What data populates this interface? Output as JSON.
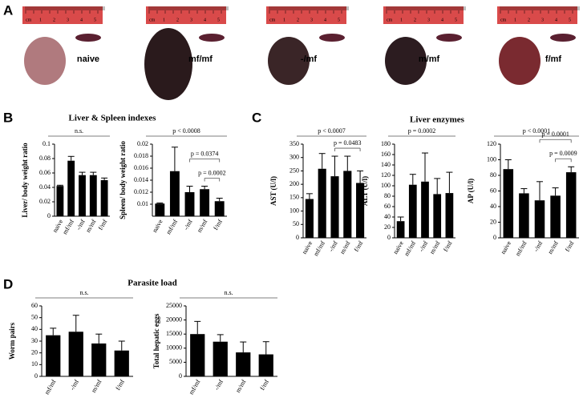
{
  "sections": [
    {
      "letter": "A"
    },
    {
      "letter": "B",
      "title": "Liver & Spleen indexes"
    },
    {
      "letter": "C",
      "title": "Liver enzymes"
    },
    {
      "letter": "D",
      "title": "Parasite load"
    }
  ],
  "photos": {
    "ruler_labels": [
      "cm",
      "1",
      "2",
      "3",
      "4",
      "5"
    ],
    "labels": [
      "naive",
      "mf/mf",
      "-/mf",
      "m/mf",
      "f/mf"
    ]
  },
  "chart_data": [
    {
      "type": "bar",
      "ylabel": "Liver/ body weight ratio",
      "color": "#000000",
      "categories": [
        "naive",
        "mf/mf",
        "-/mf",
        "m/mf",
        "f/mf"
      ],
      "values": [
        0.042,
        0.077,
        0.057,
        0.057,
        0.05
      ],
      "errors": [
        0.001,
        0.006,
        0.004,
        0.004,
        0.003
      ],
      "ylim": [
        0,
        0.1
      ],
      "yticks": [
        0,
        0.02,
        0.04,
        0.06,
        0.08,
        0.1
      ],
      "annotations": [
        {
          "label": "n.s.",
          "between": [
            "naive",
            "f/mf"
          ]
        }
      ]
    },
    {
      "type": "bar",
      "ylabel": "Spleen/ body weight ratio",
      "color": "#000000",
      "categories": [
        "naive",
        "mf/mf",
        "-/mf",
        "m/mf",
        "f/mf"
      ],
      "values": [
        0.0101,
        0.0155,
        0.012,
        0.0125,
        0.0105
      ],
      "errors": [
        0.0001,
        0.004,
        0.001,
        0.0005,
        0.0005
      ],
      "ylim": [
        0.008,
        0.02
      ],
      "yticks": [
        0.01,
        0.012,
        0.014,
        0.016,
        0.018,
        0.02
      ],
      "annotations": [
        {
          "label": "p < 0.0008",
          "between": [
            "naive",
            "f/mf"
          ]
        },
        {
          "label": "p = 0.0374",
          "between": [
            "-/mf",
            "f/mf"
          ]
        },
        {
          "label": "p = 0.0002",
          "between": [
            "m/mf",
            "f/mf"
          ]
        }
      ]
    },
    {
      "type": "bar",
      "ylabel": "AST (U/l)",
      "color": "#000000",
      "categories": [
        "naive",
        "mf/mf",
        "-/mf",
        "m/mf",
        "f/mf"
      ],
      "values": [
        145,
        258,
        230,
        250,
        205
      ],
      "errors": [
        20,
        57,
        75,
        55,
        45
      ],
      "ylim": [
        0,
        350
      ],
      "yticks": [
        0,
        50,
        100,
        150,
        200,
        250,
        300,
        350
      ],
      "annotations": [
        {
          "label": "p < 0.0007",
          "between": [
            "naive",
            "f/mf"
          ]
        },
        {
          "label": "p = 0.0483",
          "between": [
            "-/mf",
            "f/mf"
          ]
        }
      ]
    },
    {
      "type": "bar",
      "ylabel": "ALT (U/l)",
      "color": "#000000",
      "categories": [
        "naive",
        "mf/mf",
        "-/mf",
        "m/mf",
        "f/mf"
      ],
      "values": [
        32,
        102,
        108,
        84,
        86
      ],
      "errors": [
        8,
        20,
        55,
        30,
        40
      ],
      "ylim": [
        0,
        180
      ],
      "yticks": [
        0,
        20,
        40,
        60,
        80,
        100,
        120,
        140,
        160,
        180
      ],
      "annotations": [
        {
          "label": "p = 0.0002",
          "between": [
            "naive",
            "f/mf"
          ]
        }
      ]
    },
    {
      "type": "bar",
      "ylabel": "AP (U/l)",
      "color": "#000000",
      "categories": [
        "naive",
        "mf/mf",
        "-/mf",
        "m/mf",
        "f/mf"
      ],
      "values": [
        88,
        57,
        48,
        54,
        84
      ],
      "errors": [
        12,
        6,
        24,
        10,
        7
      ],
      "ylim": [
        0,
        120
      ],
      "yticks": [
        0,
        20,
        40,
        60,
        80,
        100,
        120
      ],
      "annotations": [
        {
          "label": "p < 0.0001",
          "between": [
            "naive",
            "f/mf"
          ]
        },
        {
          "label": "p = 0.0001",
          "between": [
            "-/mf",
            "f/mf"
          ]
        },
        {
          "label": "p = 0.0009",
          "between": [
            "m/mf",
            "f/mf"
          ]
        }
      ]
    },
    {
      "type": "bar",
      "ylabel": "Worm pairs",
      "color": "#000000",
      "categories": [
        "mf/mf",
        "-/mf",
        "m/mf",
        "f/mf"
      ],
      "values": [
        35,
        38,
        28,
        22
      ],
      "errors": [
        6,
        14,
        8,
        8
      ],
      "ylim": [
        0,
        60
      ],
      "yticks": [
        0,
        10,
        20,
        30,
        40,
        50,
        60
      ],
      "annotations": [
        {
          "label": "n.s.",
          "between": [
            "mf/mf",
            "f/mf"
          ]
        }
      ]
    },
    {
      "type": "bar",
      "ylabel": "Total hepatic eggs",
      "color": "#000000",
      "categories": [
        "mf/mf",
        "-/mf",
        "m/mf",
        "f/mf"
      ],
      "values": [
        15000,
        12300,
        8500,
        7800
      ],
      "errors": [
        4500,
        2500,
        3700,
        4500
      ],
      "ylim": [
        0,
        25000
      ],
      "yticks": [
        0,
        5000,
        10000,
        15000,
        20000,
        25000
      ],
      "annotations": [
        {
          "label": "n.s.",
          "between": [
            "mf/mf",
            "f/mf"
          ]
        }
      ]
    }
  ]
}
